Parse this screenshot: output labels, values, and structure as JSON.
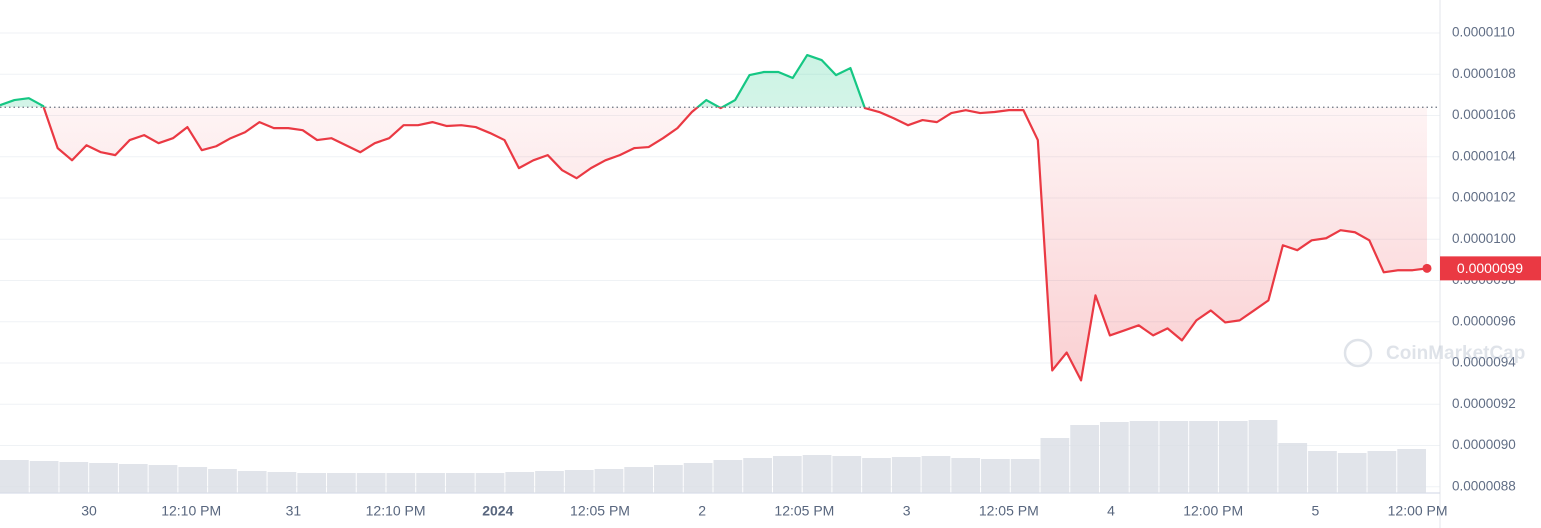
{
  "chart_data": {
    "type": "line",
    "series": [
      {
        "name": "Price",
        "values": [
          1.065e-05,
          1.0675e-05,
          1.0684e-05,
          1.0646e-05,
          1.0442e-05,
          1.0383e-05,
          1.0456e-05,
          1.0422e-05,
          1.0408e-05,
          1.0481e-05,
          1.0505e-05,
          1.0466e-05,
          1.049e-05,
          1.0544e-05,
          1.0432e-05,
          1.0451e-05,
          1.049e-05,
          1.0519e-05,
          1.0568e-05,
          1.0539e-05,
          1.0539e-05,
          1.0529e-05,
          1.0481e-05,
          1.049e-05,
          1.0456e-05,
          1.0422e-05,
          1.0466e-05,
          1.049e-05,
          1.0553e-05,
          1.0553e-05,
          1.0568e-05,
          1.0549e-05,
          1.0553e-05,
          1.0544e-05,
          1.0515e-05,
          1.0481e-05,
          1.0345e-05,
          1.0383e-05,
          1.0408e-05,
          1.0335e-05,
          1.0296e-05,
          1.0345e-05,
          1.0383e-05,
          1.0408e-05,
          1.0442e-05,
          1.0447e-05,
          1.049e-05,
          1.0539e-05,
          1.0617e-05,
          1.0675e-05,
          1.0636e-05,
          1.0675e-05,
          1.0796e-05,
          1.0811e-05,
          1.0811e-05,
          1.0782e-05,
          1.0893e-05,
          1.0869e-05,
          1.0796e-05,
          1.083e-05,
          1.0636e-05,
          1.0617e-05,
          1.0587e-05,
          1.0553e-05,
          1.0578e-05,
          1.0568e-05,
          1.0612e-05,
          1.0626e-05,
          1.0612e-05,
          1.0617e-05,
          1.0626e-05,
          1.0626e-05,
          1.0481e-05,
          9.364e-06,
          9.451e-06,
          9.316e-06,
          9.728e-06,
          9.534e-06,
          9.558e-06,
          9.583e-06,
          9.534e-06,
          9.568e-06,
          9.51e-06,
          9.607e-06,
          9.655e-06,
          9.597e-06,
          9.607e-06,
          9.655e-06,
          9.704e-06,
          9.971e-06,
          9.947e-06,
          9.995e-06,
          1.0005e-05,
          1.0044e-05,
          1.0034e-05,
          9.995e-06,
          9.84e-06,
          9.85e-06,
          9.85e-06,
          9.859e-06
        ]
      }
    ],
    "reference_value": 1.064e-05,
    "up_color": "#16c784",
    "down_color": "#ea3943",
    "current_label": "0.0000099",
    "volume": [
      33,
      32,
      31,
      30,
      29,
      28,
      26,
      24,
      22,
      21,
      20,
      20,
      20,
      20,
      20,
      20,
      20,
      21,
      22,
      23,
      24,
      26,
      28,
      30,
      33,
      35,
      37,
      38,
      37,
      35,
      36,
      37,
      35,
      34,
      34,
      55,
      68,
      71,
      72,
      72,
      72,
      72,
      73,
      50,
      42,
      40,
      42,
      44
    ],
    "ylim": [
      8.77e-06,
      1.116e-05
    ],
    "yticks": [
      {
        "value": 8.8e-06,
        "label": "0.0000088"
      },
      {
        "value": 9e-06,
        "label": "0.0000090"
      },
      {
        "value": 9.2e-06,
        "label": "0.0000092"
      },
      {
        "value": 9.4e-06,
        "label": "0.0000094"
      },
      {
        "value": 9.6e-06,
        "label": "0.0000096"
      },
      {
        "value": 9.8e-06,
        "label": "0.0000098"
      },
      {
        "value": 1e-05,
        "label": "0.0000100"
      },
      {
        "value": 1.02e-05,
        "label": "0.0000102"
      },
      {
        "value": 1.04e-05,
        "label": "0.0000104"
      },
      {
        "value": 1.06e-05,
        "label": "0.0000106"
      },
      {
        "value": 1.08e-05,
        "label": "0.0000108"
      },
      {
        "value": 1.1e-05,
        "label": "0.0000110"
      }
    ],
    "x_labels": [
      "30",
      "12:10 PM",
      "31",
      "12:10 PM",
      "2024",
      "12:05 PM",
      "2",
      "12:05 PM",
      "3",
      "12:05 PM",
      "4",
      "12:00 PM",
      "5",
      "12:00 PM"
    ],
    "bold_x_label": "2024",
    "grid": true,
    "watermark": "CoinMarketCap"
  }
}
